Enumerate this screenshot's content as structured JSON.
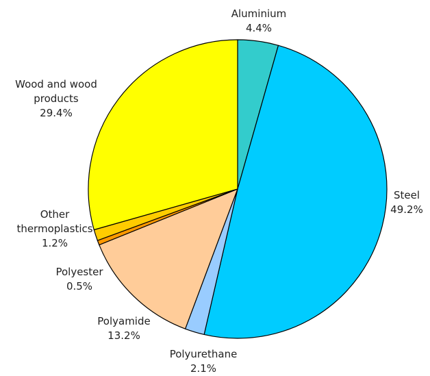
{
  "chart_data": {
    "type": "pie",
    "title": "",
    "slices": [
      {
        "label_lines": [
          "Aluminium"
        ],
        "value_text": "4.4%",
        "value": 4.4,
        "color": "#33CCCC"
      },
      {
        "label_lines": [
          "Steel"
        ],
        "value_text": "49.2%",
        "value": 49.2,
        "color": "#00CCFF"
      },
      {
        "label_lines": [
          "Polyurethane"
        ],
        "value_text": "2.1%",
        "value": 2.1,
        "color": "#99CCFF"
      },
      {
        "label_lines": [
          "Polyamide"
        ],
        "value_text": "13.2%",
        "value": 13.2,
        "color": "#FFCC99"
      },
      {
        "label_lines": [
          "Polyester"
        ],
        "value_text": "0.5%",
        "value": 0.5,
        "color": "#FF9900"
      },
      {
        "label_lines": [
          "Other",
          "thermoplastics"
        ],
        "value_text": "1.2%",
        "value": 1.2,
        "color": "#FFCC00"
      },
      {
        "label_lines": [
          "Wood and wood",
          "products"
        ],
        "value_text": "29.4%",
        "value": 29.4,
        "color": "#FFFF00"
      }
    ],
    "start_angle": "12 o'clock",
    "direction": "clockwise",
    "legend": "none",
    "outline_color": "#000000"
  }
}
